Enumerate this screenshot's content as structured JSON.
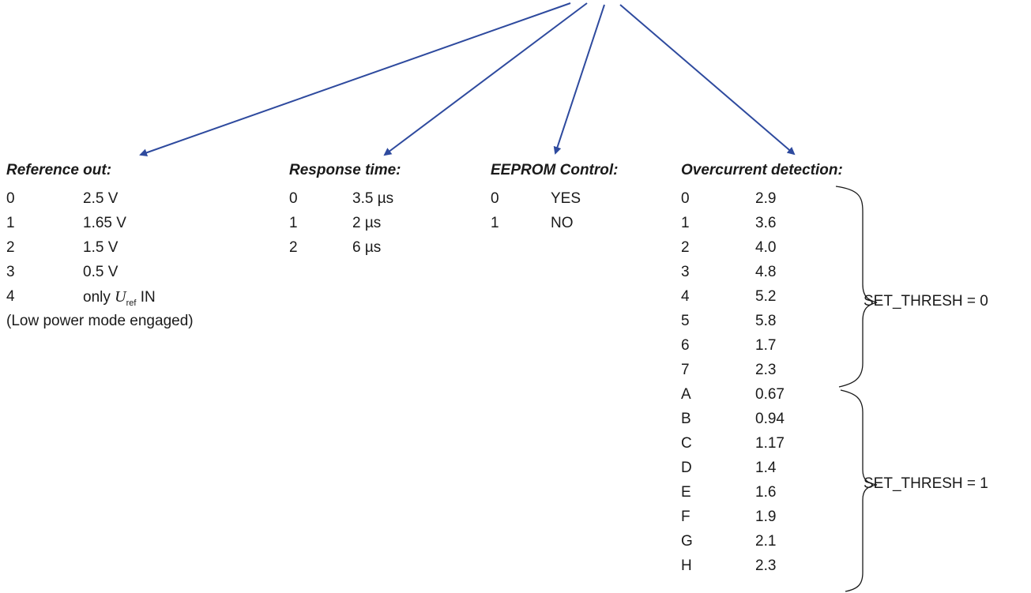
{
  "reference_out": {
    "title": "Reference out:",
    "rows": [
      {
        "code": "0",
        "value": "2.5 V"
      },
      {
        "code": "1",
        "value": "1.65 V"
      },
      {
        "code": "2",
        "value": "1.5 V"
      },
      {
        "code": "3",
        "value": "0.5 V"
      }
    ],
    "row4": {
      "code": "4",
      "prefix": "only ",
      "symbol": "U",
      "subscript": "ref",
      "suffix": " IN"
    },
    "note": "(Low power mode engaged)"
  },
  "response_time": {
    "title": "Response time:",
    "rows": [
      {
        "code": "0",
        "value": "3.5 µs"
      },
      {
        "code": "1",
        "value": "2 µs"
      },
      {
        "code": "2",
        "value": "6 µs"
      }
    ]
  },
  "eeprom_control": {
    "title": "EEPROM Control:",
    "rows": [
      {
        "code": "0",
        "value": "YES"
      },
      {
        "code": "1",
        "value": "NO"
      }
    ]
  },
  "overcurrent_detection": {
    "title": "Overcurrent detection:",
    "rows": [
      {
        "code": "0",
        "value": "2.9"
      },
      {
        "code": "1",
        "value": "3.6"
      },
      {
        "code": "2",
        "value": "4.0"
      },
      {
        "code": "3",
        "value": "4.8"
      },
      {
        "code": "4",
        "value": "5.2"
      },
      {
        "code": "5",
        "value": "5.8"
      },
      {
        "code": "6",
        "value": "1.7"
      },
      {
        "code": "7",
        "value": "2.3"
      },
      {
        "code": "A",
        "value": "0.67"
      },
      {
        "code": "B",
        "value": "0.94"
      },
      {
        "code": "C",
        "value": "1.17"
      },
      {
        "code": "D",
        "value": "1.4"
      },
      {
        "code": "E",
        "value": "1.6"
      },
      {
        "code": "F",
        "value": "1.9"
      },
      {
        "code": "G",
        "value": "2.1"
      },
      {
        "code": "H",
        "value": "2.3"
      }
    ],
    "group_labels": {
      "set_thresh_0": "SET_THRESH = 0",
      "set_thresh_1": "SET_THRESH = 1"
    }
  },
  "colors": {
    "arrow": "#2e4a9e",
    "text": "#1a1a1a",
    "brace": "#1a1a1a"
  }
}
